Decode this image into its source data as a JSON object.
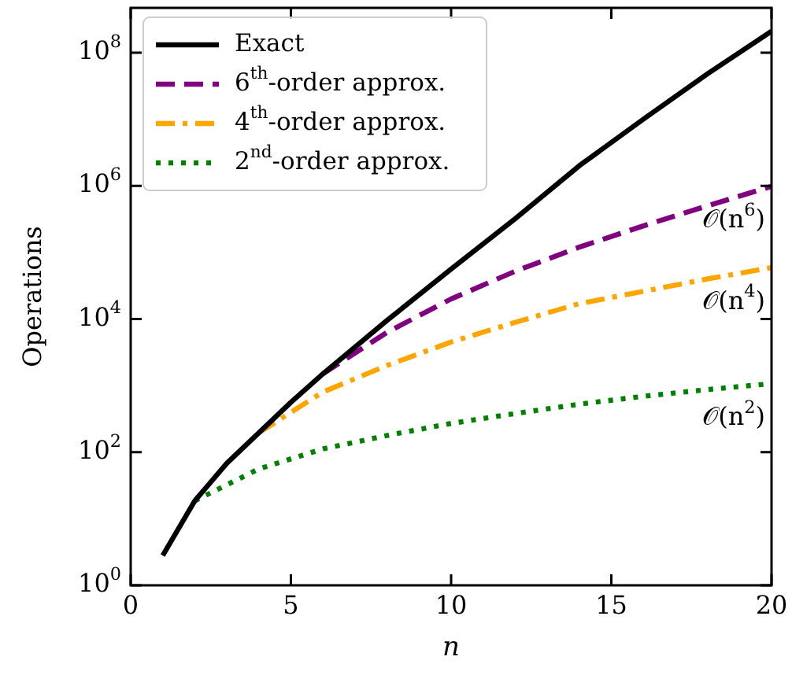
{
  "chart_data": {
    "type": "line",
    "xlabel": "n",
    "ylabel": "Operations",
    "log": "y",
    "grid": false,
    "legend": "top left",
    "marker": "none",
    "xlim": [
      0,
      20
    ],
    "xticks": [
      0,
      5,
      10,
      15,
      20
    ],
    "ylim": [
      1,
      470000000
    ],
    "yticks": [
      {
        "value": 1,
        "label": "10$^{0}$"
      },
      {
        "value": 100,
        "label": "10$^{2}$"
      },
      {
        "value": 10000,
        "label": "10$^{4}$"
      },
      {
        "value": 1000000,
        "label": "10$^{6}$"
      },
      {
        "value": 100000000,
        "label": "10$^{8}$"
      }
    ],
    "series": [
      {
        "name": "Exact",
        "color": "#000000",
        "line_style": "solid",
        "x": [
          1,
          2,
          3,
          4,
          5,
          6,
          8,
          10,
          12,
          14,
          16,
          18,
          20
        ],
        "values": [
          2.8,
          18.6,
          68,
          195,
          560,
          1500,
          9500,
          56000,
          320000,
          2000000,
          10000000,
          48000000,
          210000000
        ]
      },
      {
        "name": "6$^{th}$-order approx.",
        "color": "#800080",
        "line_style": "dashed",
        "x": [
          6,
          8,
          10,
          12,
          14,
          16,
          18,
          20
        ],
        "values": [
          1500,
          6300,
          20000,
          52000,
          120000,
          250000,
          500000,
          980000
        ]
      },
      {
        "name": "4$^{th}$-order approx.",
        "color": "#ffa500",
        "line_style": "dashdot",
        "x": [
          4,
          6,
          8,
          10,
          12,
          14,
          16,
          18,
          20
        ],
        "values": [
          195,
          800,
          2000,
          4500,
          8900,
          17000,
          26000,
          40000,
          59000
        ]
      },
      {
        "name": "2$^{nd}$-order approx.",
        "color": "#008000",
        "line_style": "dotted",
        "x": [
          2,
          4,
          6,
          8,
          10,
          12,
          14,
          16,
          18,
          20
        ],
        "values": [
          18.6,
          56,
          112,
          178,
          270,
          380,
          525,
          690,
          870,
          1070
        ]
      }
    ],
    "annotations": [
      "𝒪(n$^{6}$)",
      "𝒪(n$^{4}$)",
      "𝒪(n$^{2}$)"
    ]
  }
}
